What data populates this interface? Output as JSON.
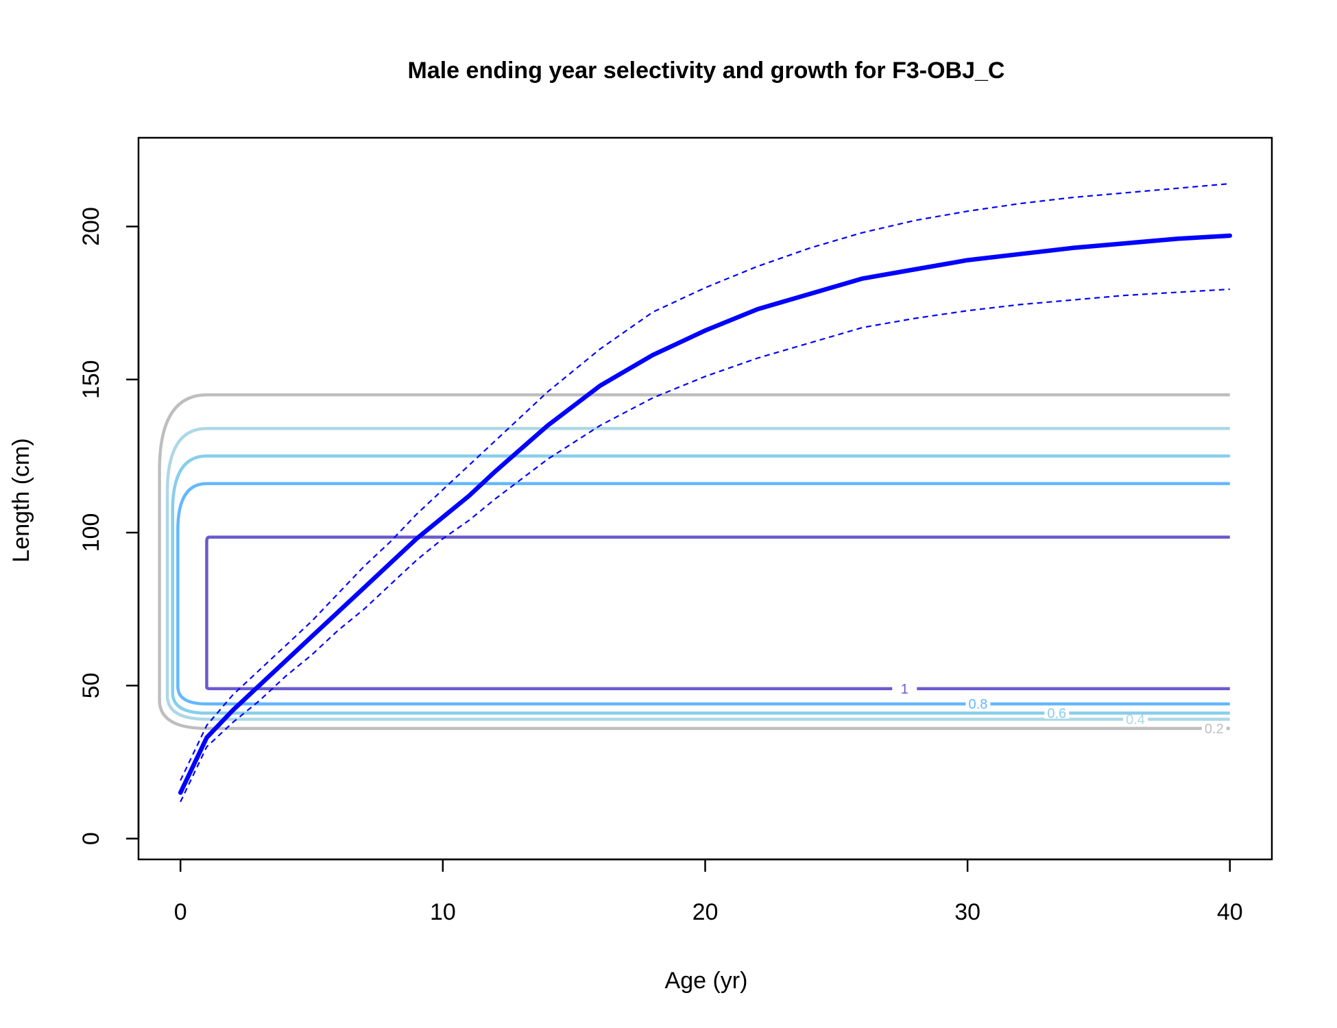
{
  "chart_data": {
    "type": "line",
    "title": "Male ending year selectivity and growth for F3-OBJ_C",
    "xlabel": "Age (yr)",
    "ylabel": "Length (cm)",
    "xlim": [
      -1.6,
      41.6
    ],
    "ylim": [
      -6.8,
      229
    ],
    "x_ticks": [
      "0",
      "10",
      "20",
      "30",
      "40"
    ],
    "y_ticks": [
      "0",
      "50",
      "100",
      "150",
      "200"
    ],
    "grid": false,
    "legend": "none",
    "growth": {
      "color": "#0000ff",
      "x": [
        0,
        1,
        2,
        3,
        4,
        5,
        6,
        7,
        8,
        9,
        10,
        11,
        12,
        14,
        16,
        18,
        20,
        22,
        24,
        26,
        28,
        30,
        32,
        34,
        36,
        38,
        40
      ],
      "mean": [
        15,
        33,
        42,
        50,
        58,
        66,
        74,
        82,
        90,
        98,
        105,
        112,
        120,
        135,
        148,
        158,
        166,
        173,
        178,
        183,
        186,
        189,
        191,
        193,
        194.5,
        196,
        197
      ],
      "upper": [
        19,
        37,
        47,
        55,
        63,
        71,
        80,
        89,
        97,
        106,
        114,
        122,
        130,
        146,
        160,
        172,
        180,
        187,
        193,
        198,
        202,
        205,
        207.5,
        209.5,
        211,
        212.5,
        214
      ],
      "lower": [
        12,
        30,
        38,
        45,
        53,
        60,
        68,
        75,
        83,
        91,
        98,
        104,
        111,
        124,
        135,
        144,
        151,
        157,
        162,
        167,
        170,
        172.5,
        174.5,
        176,
        177.5,
        178.5,
        179.5
      ]
    },
    "contours": [
      {
        "label": "0.2",
        "color": "#bebebe",
        "low": 36,
        "high": 145,
        "x_left": -0.8,
        "label_x": 39.4
      },
      {
        "label": "0.4",
        "color": "#add8e6",
        "low": 39,
        "high": 134,
        "x_left": -0.5,
        "label_x": 36.4
      },
      {
        "label": "0.6",
        "color": "#87ceeb",
        "low": 41,
        "high": 125,
        "x_left": -0.3,
        "label_x": 33.4
      },
      {
        "label": "0.8",
        "color": "#63b8ff",
        "low": 44,
        "high": 116,
        "x_left": -0.1,
        "label_x": 30.4
      },
      {
        "label": "1",
        "color": "#6a5acd",
        "low": 49,
        "high": 98.5,
        "x_left": 1,
        "label_x": 27.6
      }
    ]
  }
}
